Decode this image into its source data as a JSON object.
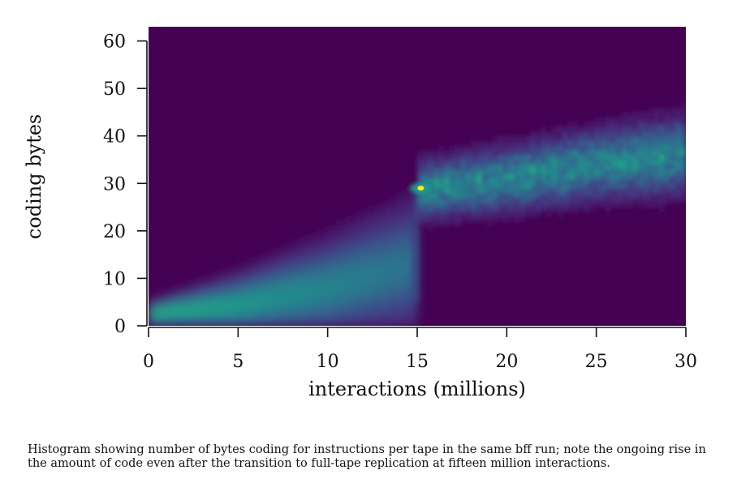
{
  "caption": "Histogram showing number of bytes coding for instructions per tape in the same bff run; note the ongoing rise in the amount of code even after the transition to full-tape replication at fifteen million interactions.",
  "colors": {
    "colormap": "viridis",
    "background": "#440154",
    "peak": "#fde725"
  },
  "chart_data": {
    "type": "heatmap",
    "title": "",
    "xlabel": "interactions (millions)",
    "ylabel": "coding bytes",
    "xlim": [
      0,
      30
    ],
    "ylim": [
      0,
      63
    ],
    "xticks": [
      0,
      5,
      10,
      15,
      20,
      25,
      30
    ],
    "yticks": [
      0,
      10,
      20,
      30,
      40,
      50,
      60
    ],
    "colormap": "viridis",
    "grid": false,
    "legend": "none",
    "regime_before": [
      {
        "x": 0,
        "mean_coding_bytes": 2.5
      },
      {
        "x": 5,
        "mean_coding_bytes": 4.5
      },
      {
        "x": 10,
        "mean_coding_bytes": 8
      },
      {
        "x": 14.8,
        "mean_coding_bytes": 13
      }
    ],
    "transition_x": 15,
    "peak_point": {
      "x": 15.2,
      "y": 29
    },
    "regime_after": [
      {
        "x": 15,
        "mean_coding_bytes": 28.5
      },
      {
        "x": 20,
        "mean_coding_bytes": 31
      },
      {
        "x": 25,
        "mean_coding_bytes": 34
      },
      {
        "x": 30,
        "mean_coding_bytes": 36
      }
    ]
  }
}
